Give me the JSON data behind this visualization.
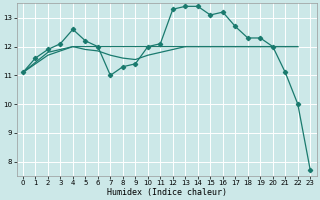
{
  "bg_color": "#cce8e8",
  "grid_color": "#ffffff",
  "line_color": "#1a7a6e",
  "xlabel": "Humidex (Indice chaleur)",
  "xlim": [
    -0.5,
    23.5
  ],
  "ylim": [
    7.5,
    13.5
  ],
  "yticks": [
    8,
    9,
    10,
    11,
    12,
    13
  ],
  "xticks": [
    0,
    1,
    2,
    3,
    4,
    5,
    6,
    7,
    8,
    9,
    10,
    11,
    12,
    13,
    14,
    15,
    16,
    17,
    18,
    19,
    20,
    21,
    22,
    23
  ],
  "line_main_x": [
    0,
    1,
    2,
    3,
    4,
    5,
    6,
    7,
    8,
    9,
    10,
    11,
    12,
    13,
    14,
    15,
    16,
    17,
    18,
    19,
    20,
    21,
    22,
    23
  ],
  "line_main_y": [
    11.1,
    11.6,
    11.9,
    12.1,
    12.6,
    12.2,
    12.0,
    11.0,
    11.3,
    11.4,
    12.0,
    12.1,
    13.3,
    13.4,
    13.4,
    13.1,
    13.2,
    12.7,
    12.3,
    12.3,
    12.0,
    11.1,
    10.0,
    7.7
  ],
  "line_flat_x": [
    0,
    2,
    4,
    6,
    8,
    10,
    12,
    14,
    16,
    18,
    19,
    20,
    21,
    22
  ],
  "line_flat_y": [
    11.1,
    11.8,
    12.0,
    12.0,
    12.0,
    12.0,
    12.0,
    12.0,
    12.0,
    12.0,
    12.0,
    12.0,
    12.0,
    12.0
  ],
  "line_smooth_x": [
    0,
    1,
    2,
    3,
    4,
    5,
    6,
    7,
    8,
    9,
    10,
    11,
    12,
    13,
    14,
    15,
    16,
    17,
    18,
    19,
    20,
    21,
    22
  ],
  "line_smooth_y": [
    11.1,
    11.4,
    11.7,
    11.85,
    12.0,
    11.9,
    11.85,
    11.7,
    11.6,
    11.55,
    11.7,
    11.8,
    11.9,
    12.0,
    12.0,
    12.0,
    12.0,
    12.0,
    12.0,
    12.0,
    12.0,
    12.0,
    12.0
  ]
}
